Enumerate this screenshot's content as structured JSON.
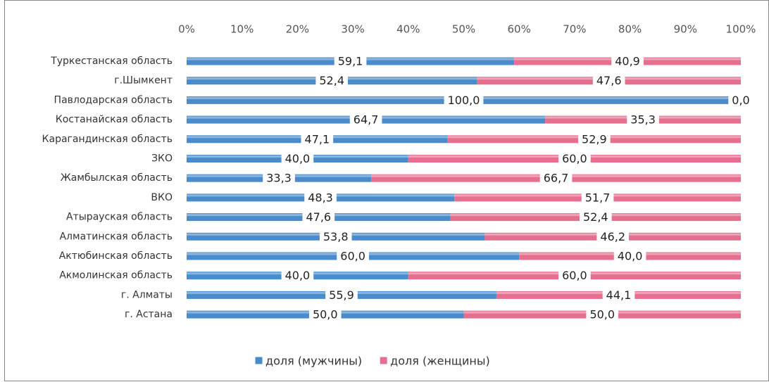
{
  "chart_data": {
    "type": "bar",
    "orientation": "horizontal",
    "stacked": true,
    "categories": [
      "Туркестанская область",
      "г.Шымкент",
      "Павлодарская область",
      "Костанайская область",
      "Карагандинская область",
      "ЗКО",
      "Жамбылская область",
      "ВКО",
      "Атырауская область",
      "Алматинская область",
      "Актюбинская область",
      "Акмолинская область",
      "г. Алматы",
      "г. Астана"
    ],
    "series": [
      {
        "name": "доля (мужчины)",
        "color": "#4a8ccb",
        "values": [
          59.1,
          52.4,
          100.0,
          64.7,
          47.1,
          40.0,
          33.3,
          48.3,
          47.6,
          53.8,
          60.0,
          40.0,
          55.9,
          50.0
        ],
        "value_labels": [
          "59,1",
          "52,4",
          "100,0",
          "64,7",
          "47,1",
          "40,0",
          "33,3",
          "48,3",
          "47,6",
          "53,8",
          "60,0",
          "40,0",
          "55,9",
          "50,0"
        ]
      },
      {
        "name": "доля (женщины)",
        "color": "#e66f90",
        "values": [
          40.9,
          47.6,
          0.0,
          35.3,
          52.9,
          60.0,
          66.7,
          51.7,
          52.4,
          46.2,
          40.0,
          60.0,
          44.1,
          50.0
        ],
        "value_labels": [
          "40,9",
          "47,6",
          "0,0",
          "35,3",
          "52,9",
          "60,0",
          "66,7",
          "51,7",
          "52,4",
          "46,2",
          "40,0",
          "60,0",
          "44,1",
          "50,0"
        ]
      }
    ],
    "xlim": [
      0,
      100
    ],
    "xticks": [
      {
        "value": 0,
        "label": "0%"
      },
      {
        "value": 10,
        "label": "10%"
      },
      {
        "value": 20,
        "label": "20%"
      },
      {
        "value": 30,
        "label": "30%"
      },
      {
        "value": 40,
        "label": "40%"
      },
      {
        "value": 50,
        "label": "50%"
      },
      {
        "value": 60,
        "label": "60%"
      },
      {
        "value": 70,
        "label": "70%"
      },
      {
        "value": 80,
        "label": "80%"
      },
      {
        "value": 90,
        "label": "90%"
      },
      {
        "value": 100,
        "label": "100%"
      }
    ],
    "legend": "bottom"
  }
}
